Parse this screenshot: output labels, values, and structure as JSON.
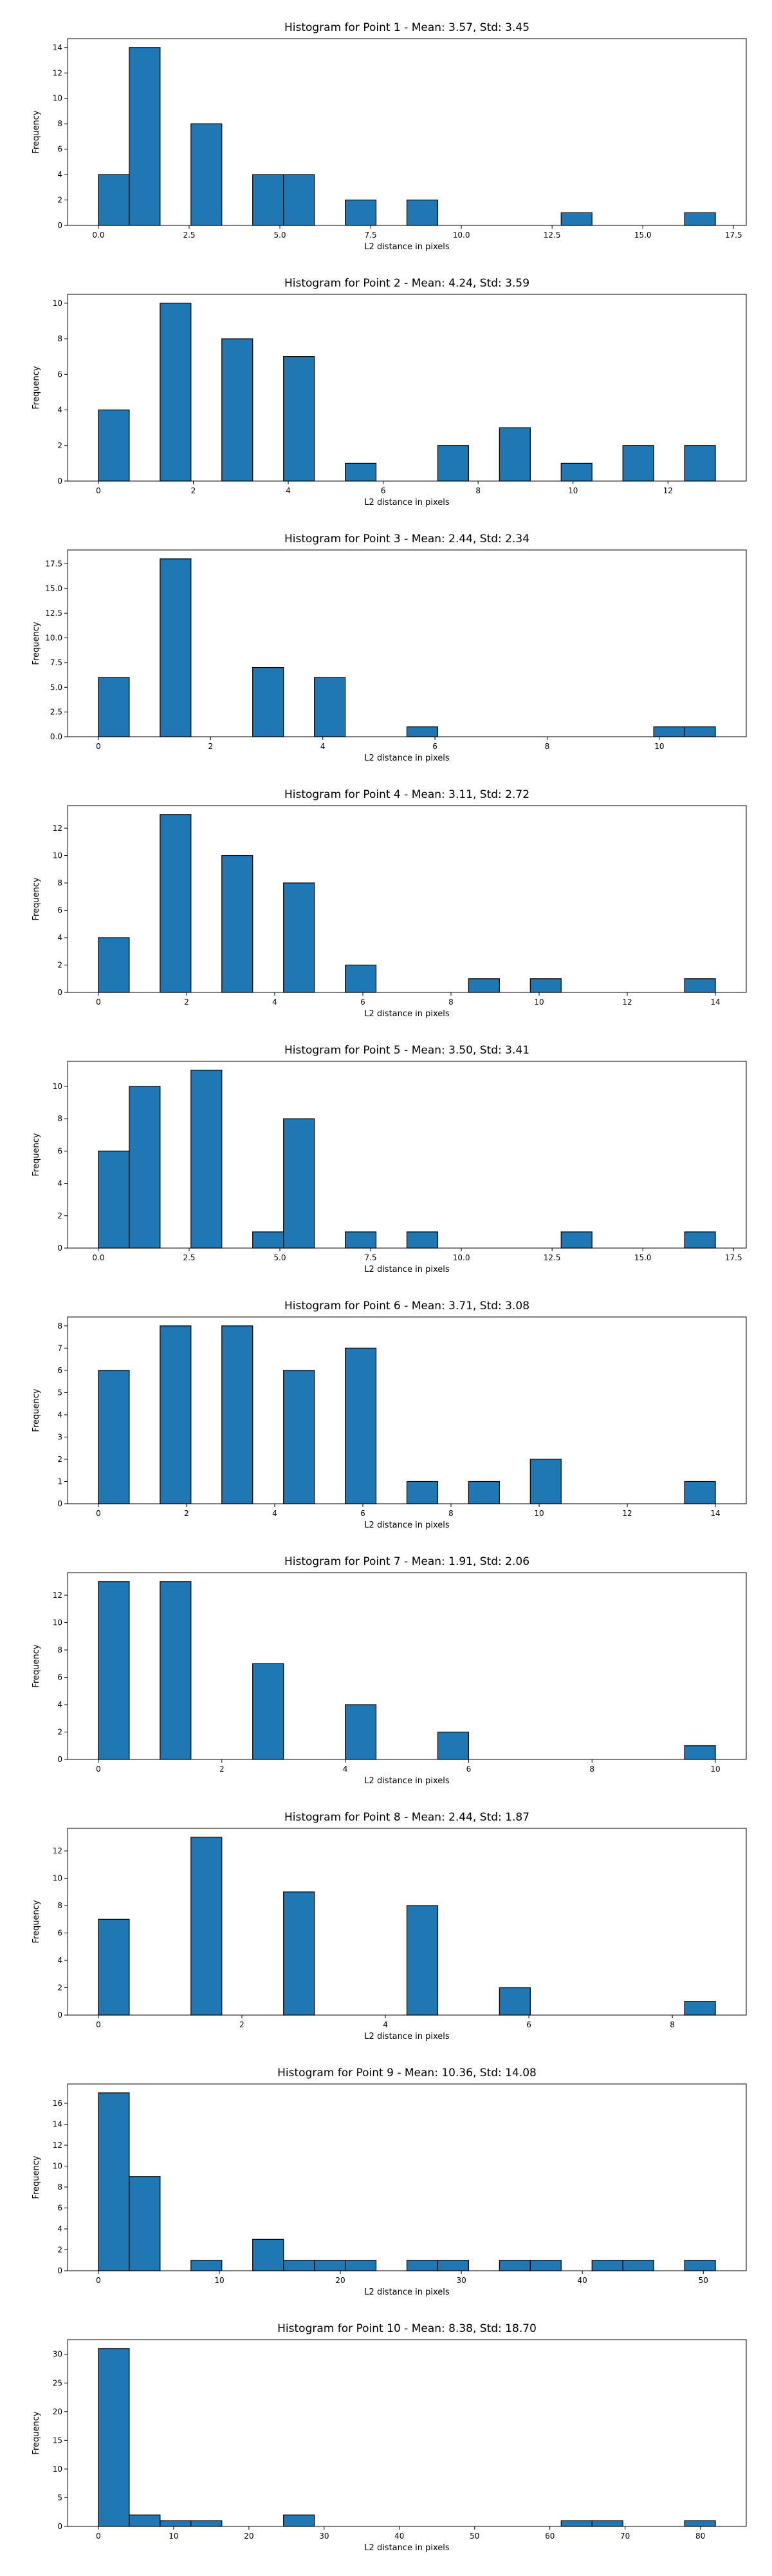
{
  "figure": {
    "bar_color": "#1f77b4",
    "edge_color": "#000000",
    "background": "#ffffff"
  },
  "chart_data": [
    {
      "type": "bar",
      "title": "Histogram for Point 1 - Mean: 3.57, Std: 3.45",
      "xlabel": "L2 distance in pixels",
      "ylabel": "Frequency",
      "bins": [
        [
          0.0,
          0.85,
          4
        ],
        [
          0.85,
          1.7,
          14
        ],
        [
          2.55,
          3.4,
          8
        ],
        [
          4.25,
          5.1,
          4
        ],
        [
          5.1,
          5.95,
          4
        ],
        [
          6.8,
          7.65,
          2
        ],
        [
          8.5,
          9.35,
          2
        ],
        [
          12.75,
          13.6,
          1
        ],
        [
          16.15,
          17.0,
          1
        ]
      ],
      "xlim": [
        -0.85,
        17.85
      ],
      "ylim": [
        0,
        14.7
      ],
      "xticks": [
        0,
        2.5,
        5,
        7.5,
        10,
        12.5,
        15,
        17.5
      ],
      "xtick_labels": [
        "0.0",
        "2.5",
        "5.0",
        "7.5",
        "10.0",
        "12.5",
        "15.0",
        "17.5"
      ],
      "yticks": [
        0,
        2,
        4,
        6,
        8,
        10,
        12,
        14
      ],
      "ytick_labels": [
        "0",
        "2",
        "4",
        "6",
        "8",
        "10",
        "12",
        "14"
      ]
    },
    {
      "type": "bar",
      "title": "Histogram for Point 2 - Mean: 4.24, Std: 3.59",
      "xlabel": "L2 distance in pixels",
      "ylabel": "Frequency",
      "bins": [
        [
          0.0,
          0.65,
          4
        ],
        [
          1.3,
          1.95,
          10
        ],
        [
          2.6,
          3.25,
          8
        ],
        [
          3.9,
          4.55,
          7
        ],
        [
          5.2,
          5.85,
          1
        ],
        [
          7.15,
          7.8,
          2
        ],
        [
          8.45,
          9.1,
          3
        ],
        [
          9.75,
          10.4,
          1
        ],
        [
          11.05,
          11.7,
          2
        ],
        [
          12.35,
          13.0,
          2
        ]
      ],
      "xlim": [
        -0.65,
        13.65
      ],
      "ylim": [
        0,
        10.5
      ],
      "xticks": [
        0,
        2,
        4,
        6,
        8,
        10,
        12
      ],
      "xtick_labels": [
        "0",
        "2",
        "4",
        "6",
        "8",
        "10",
        "12"
      ],
      "yticks": [
        0,
        2,
        4,
        6,
        8,
        10
      ],
      "ytick_labels": [
        "0",
        "2",
        "4",
        "6",
        "8",
        "10"
      ]
    },
    {
      "type": "bar",
      "title": "Histogram for Point 3 - Mean: 2.44, Std: 2.34",
      "xlabel": "L2 distance in pixels",
      "ylabel": "Frequency",
      "bins": [
        [
          0.0,
          0.55,
          6
        ],
        [
          1.1,
          1.65,
          18
        ],
        [
          2.75,
          3.3,
          7
        ],
        [
          3.85,
          4.4,
          6
        ],
        [
          5.5,
          6.05,
          1
        ],
        [
          9.9,
          10.45,
          1
        ],
        [
          10.45,
          11.0,
          1
        ]
      ],
      "xlim": [
        -0.55,
        11.55
      ],
      "ylim": [
        0,
        18.9
      ],
      "xticks": [
        0,
        2,
        4,
        6,
        8,
        10
      ],
      "xtick_labels": [
        "0",
        "2",
        "4",
        "6",
        "8",
        "10"
      ],
      "yticks": [
        0,
        2.5,
        5,
        7.5,
        10,
        12.5,
        15,
        17.5
      ],
      "ytick_labels": [
        "0.0",
        "2.5",
        "5.0",
        "7.5",
        "10.0",
        "12.5",
        "15.0",
        "17.5"
      ]
    },
    {
      "type": "bar",
      "title": "Histogram for Point 4 - Mean: 3.11, Std: 2.72",
      "xlabel": "L2 distance in pixels",
      "ylabel": "Frequency",
      "bins": [
        [
          0.0,
          0.7,
          4
        ],
        [
          1.4,
          2.1,
          13
        ],
        [
          2.8,
          3.5,
          10
        ],
        [
          4.2,
          4.9,
          8
        ],
        [
          5.6,
          6.3,
          2
        ],
        [
          8.4,
          9.1,
          1
        ],
        [
          9.8,
          10.5,
          1
        ],
        [
          13.3,
          14.0,
          1
        ]
      ],
      "xlim": [
        -0.7,
        14.7
      ],
      "ylim": [
        0,
        13.65
      ],
      "xticks": [
        0,
        2,
        4,
        6,
        8,
        10,
        12,
        14
      ],
      "xtick_labels": [
        "0",
        "2",
        "4",
        "6",
        "8",
        "10",
        "12",
        "14"
      ],
      "yticks": [
        0,
        2,
        4,
        6,
        8,
        10,
        12
      ],
      "ytick_labels": [
        "0",
        "2",
        "4",
        "6",
        "8",
        "10",
        "12"
      ]
    },
    {
      "type": "bar",
      "title": "Histogram for Point 5 - Mean: 3.50, Std: 3.41",
      "xlabel": "L2 distance in pixels",
      "ylabel": "Frequency",
      "bins": [
        [
          0.0,
          0.85,
          6
        ],
        [
          0.85,
          1.7,
          10
        ],
        [
          2.55,
          3.4,
          11
        ],
        [
          4.25,
          5.1,
          1
        ],
        [
          5.1,
          5.95,
          8
        ],
        [
          6.8,
          7.65,
          1
        ],
        [
          8.5,
          9.35,
          1
        ],
        [
          12.75,
          13.6,
          1
        ],
        [
          16.15,
          17.0,
          1
        ]
      ],
      "xlim": [
        -0.85,
        17.85
      ],
      "ylim": [
        0,
        11.55
      ],
      "xticks": [
        0,
        2.5,
        5,
        7.5,
        10,
        12.5,
        15,
        17.5
      ],
      "xtick_labels": [
        "0.0",
        "2.5",
        "5.0",
        "7.5",
        "10.0",
        "12.5",
        "15.0",
        "17.5"
      ],
      "yticks": [
        0,
        2,
        4,
        6,
        8,
        10
      ],
      "ytick_labels": [
        "0",
        "2",
        "4",
        "6",
        "8",
        "10"
      ]
    },
    {
      "type": "bar",
      "title": "Histogram for Point 6 - Mean: 3.71, Std: 3.08",
      "xlabel": "L2 distance in pixels",
      "ylabel": "Frequency",
      "bins": [
        [
          0.0,
          0.7,
          6
        ],
        [
          1.4,
          2.1,
          8
        ],
        [
          2.8,
          3.5,
          8
        ],
        [
          4.2,
          4.9,
          6
        ],
        [
          5.6,
          6.3,
          7
        ],
        [
          7.0,
          7.7,
          1
        ],
        [
          8.4,
          9.1,
          1
        ],
        [
          9.8,
          10.5,
          2
        ],
        [
          13.3,
          14.0,
          1
        ]
      ],
      "xlim": [
        -0.7,
        14.7
      ],
      "ylim": [
        0,
        8.4
      ],
      "xticks": [
        0,
        2,
        4,
        6,
        8,
        10,
        12,
        14
      ],
      "xtick_labels": [
        "0",
        "2",
        "4",
        "6",
        "8",
        "10",
        "12",
        "14"
      ],
      "yticks": [
        0,
        1,
        2,
        3,
        4,
        5,
        6,
        7,
        8
      ],
      "ytick_labels": [
        "0",
        "1",
        "2",
        "3",
        "4",
        "5",
        "6",
        "7",
        "8"
      ]
    },
    {
      "type": "bar",
      "title": "Histogram for Point 7 - Mean: 1.91, Std: 2.06",
      "xlabel": "L2 distance in pixels",
      "ylabel": "Frequency",
      "bins": [
        [
          0.0,
          0.5,
          13
        ],
        [
          1.0,
          1.5,
          13
        ],
        [
          2.5,
          3.0,
          7
        ],
        [
          4.0,
          4.5,
          4
        ],
        [
          5.5,
          6.0,
          2
        ],
        [
          9.5,
          10.0,
          1
        ]
      ],
      "xlim": [
        -0.5,
        10.5
      ],
      "ylim": [
        0,
        13.65
      ],
      "xticks": [
        0,
        2,
        4,
        6,
        8,
        10
      ],
      "xtick_labels": [
        "0",
        "2",
        "4",
        "6",
        "8",
        "10"
      ],
      "yticks": [
        0,
        2,
        4,
        6,
        8,
        10,
        12
      ],
      "ytick_labels": [
        "0",
        "2",
        "4",
        "6",
        "8",
        "10",
        "12"
      ]
    },
    {
      "type": "bar",
      "title": "Histogram for Point 8 - Mean: 2.44, Std: 1.87",
      "xlabel": "L2 distance in pixels",
      "ylabel": "Frequency",
      "bins": [
        [
          0.0,
          0.43,
          7
        ],
        [
          1.29,
          1.72,
          13
        ],
        [
          2.58,
          3.01,
          9
        ],
        [
          4.3,
          4.73,
          8
        ],
        [
          5.59,
          6.02,
          2
        ],
        [
          8.17,
          8.6,
          1
        ]
      ],
      "xlim": [
        -0.43,
        9.03
      ],
      "ylim": [
        0,
        13.65
      ],
      "xticks": [
        0,
        2,
        4,
        6,
        8
      ],
      "xtick_labels": [
        "0",
        "2",
        "4",
        "6",
        "8"
      ],
      "yticks": [
        0,
        2,
        4,
        6,
        8,
        10,
        12
      ],
      "ytick_labels": [
        "0",
        "2",
        "4",
        "6",
        "8",
        "10",
        "12"
      ]
    },
    {
      "type": "bar",
      "title": "Histogram for Point 9 - Mean: 10.36, Std: 14.08",
      "xlabel": "L2 distance in pixels",
      "ylabel": "Frequency",
      "bins": [
        [
          0.0,
          2.55,
          17
        ],
        [
          2.55,
          5.1,
          9
        ],
        [
          7.65,
          10.2,
          1
        ],
        [
          12.75,
          15.3,
          3
        ],
        [
          15.3,
          17.85,
          1
        ],
        [
          17.85,
          20.4,
          1
        ],
        [
          20.4,
          22.95,
          1
        ],
        [
          25.5,
          28.05,
          1
        ],
        [
          28.05,
          30.6,
          1
        ],
        [
          33.15,
          35.7,
          1
        ],
        [
          35.7,
          38.25,
          1
        ],
        [
          40.8,
          43.35,
          1
        ],
        [
          43.35,
          45.9,
          1
        ],
        [
          48.45,
          51.0,
          1
        ]
      ],
      "xlim": [
        -2.55,
        53.55
      ],
      "ylim": [
        0,
        17.85
      ],
      "xticks": [
        0,
        10,
        20,
        30,
        40,
        50
      ],
      "xtick_labels": [
        "0",
        "10",
        "20",
        "30",
        "40",
        "50"
      ],
      "yticks": [
        0,
        2,
        4,
        6,
        8,
        10,
        12,
        14,
        16
      ],
      "ytick_labels": [
        "0",
        "2",
        "4",
        "6",
        "8",
        "10",
        "12",
        "14",
        "16"
      ]
    },
    {
      "type": "bar",
      "title": "Histogram for Point 10 - Mean: 8.38, Std: 18.70",
      "xlabel": "L2 distance in pixels",
      "ylabel": "Frequency",
      "bins": [
        [
          0.0,
          4.1,
          31
        ],
        [
          4.1,
          8.2,
          2
        ],
        [
          8.2,
          12.3,
          1
        ],
        [
          12.3,
          16.4,
          1
        ],
        [
          24.6,
          28.7,
          2
        ],
        [
          61.5,
          65.6,
          1
        ],
        [
          65.6,
          69.7,
          1
        ],
        [
          77.9,
          82.0,
          1
        ]
      ],
      "xlim": [
        -4.1,
        86.1
      ],
      "ylim": [
        0,
        32.55
      ],
      "xticks": [
        0,
        10,
        20,
        30,
        40,
        50,
        60,
        70,
        80
      ],
      "xtick_labels": [
        "0",
        "10",
        "20",
        "30",
        "40",
        "50",
        "60",
        "70",
        "80"
      ],
      "yticks": [
        0,
        5,
        10,
        15,
        20,
        25,
        30
      ],
      "ytick_labels": [
        "0",
        "5",
        "10",
        "15",
        "20",
        "25",
        "30"
      ]
    }
  ]
}
